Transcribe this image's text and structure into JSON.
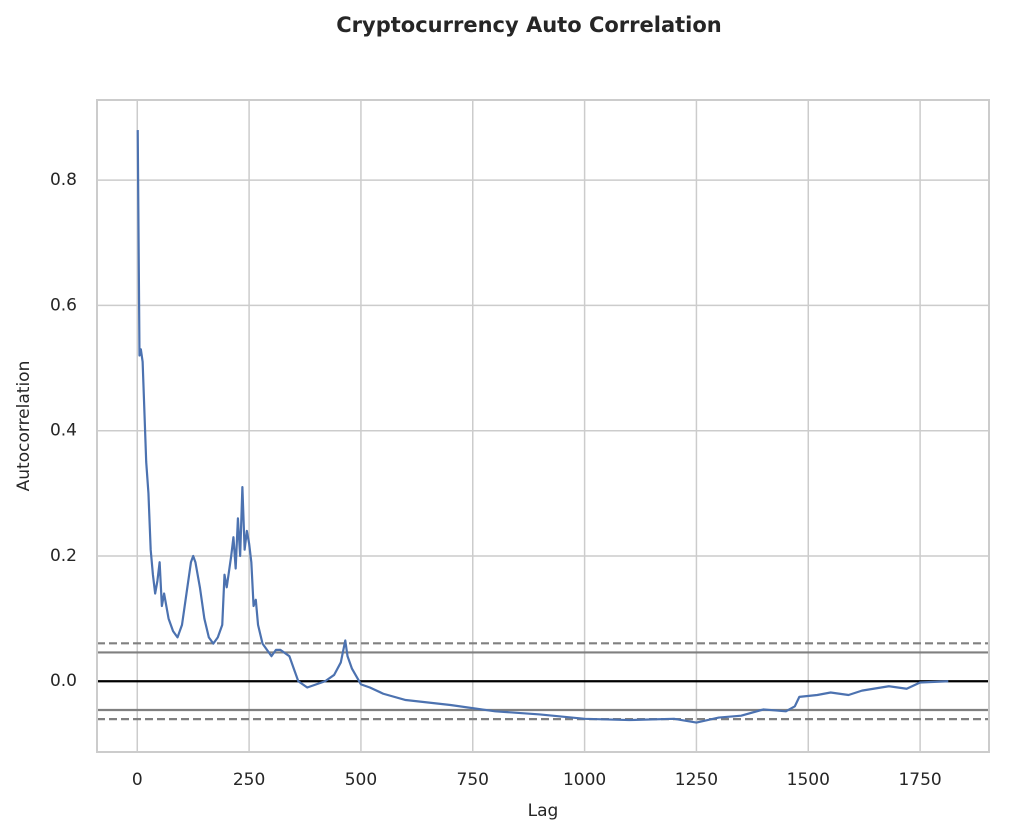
{
  "chart_data": {
    "type": "line",
    "title": "Cryptocurrency Auto Correlation",
    "x_label": "Lag",
    "y_label": "Autocorrelation",
    "x": [
      1,
      5,
      8,
      12,
      20,
      25,
      30,
      35,
      40,
      45,
      50,
      55,
      60,
      65,
      70,
      80,
      90,
      100,
      110,
      120,
      125,
      130,
      140,
      150,
      160,
      170,
      180,
      190,
      195,
      200,
      210,
      215,
      220,
      225,
      230,
      235,
      240,
      245,
      250,
      255,
      260,
      265,
      270,
      280,
      290,
      300,
      310,
      320,
      340,
      350,
      360,
      380,
      400,
      420,
      440,
      455,
      465,
      470,
      480,
      500,
      520,
      550,
      600,
      700,
      800,
      900,
      1000,
      1100,
      1200,
      1250,
      1300,
      1350,
      1400,
      1450,
      1470,
      1480,
      1520,
      1550,
      1590,
      1620,
      1680,
      1720,
      1750,
      1813
    ],
    "series": [
      {
        "name": "Autocorrelation",
        "color": "#4c72b0",
        "values": [
          0.88,
          0.52,
          0.53,
          0.51,
          0.35,
          0.3,
          0.21,
          0.17,
          0.14,
          0.16,
          0.19,
          0.12,
          0.14,
          0.12,
          0.1,
          0.08,
          0.07,
          0.09,
          0.14,
          0.19,
          0.2,
          0.19,
          0.15,
          0.1,
          0.07,
          0.06,
          0.07,
          0.09,
          0.17,
          0.15,
          0.2,
          0.23,
          0.18,
          0.26,
          0.2,
          0.31,
          0.21,
          0.24,
          0.22,
          0.19,
          0.12,
          0.13,
          0.09,
          0.06,
          0.05,
          0.04,
          0.05,
          0.05,
          0.04,
          0.02,
          0.0,
          -0.01,
          -0.005,
          0.0,
          0.01,
          0.03,
          0.065,
          0.04,
          0.02,
          -0.005,
          -0.01,
          -0.02,
          -0.03,
          -0.038,
          -0.048,
          -0.053,
          -0.06,
          -0.062,
          -0.06,
          -0.066,
          -0.058,
          -0.055,
          -0.045,
          -0.048,
          -0.04,
          -0.025,
          -0.022,
          -0.018,
          -0.022,
          -0.015,
          -0.008,
          -0.012,
          -0.002,
          0.0
        ]
      }
    ],
    "reference_lines": [
      {
        "value": 0.0605,
        "color": "#808080",
        "style": "dashed"
      },
      {
        "value": 0.046,
        "color": "#808080",
        "style": "solid"
      },
      {
        "value": 0,
        "color": "#000000",
        "style": "solid"
      },
      {
        "value": -0.046,
        "color": "#808080",
        "style": "solid"
      },
      {
        "value": -0.0605,
        "color": "#808080",
        "style": "dashed"
      }
    ],
    "xlim": [
      -90,
      1904
    ],
    "ylim": [
      -0.113,
      0.928
    ],
    "xticks": [
      0,
      250,
      500,
      750,
      1000,
      1250,
      1500,
      1750
    ],
    "yticks": [
      {
        "value": 0,
        "label": "0.0"
      },
      0.2,
      0.4,
      0.6,
      0.8
    ],
    "grid": true
  }
}
